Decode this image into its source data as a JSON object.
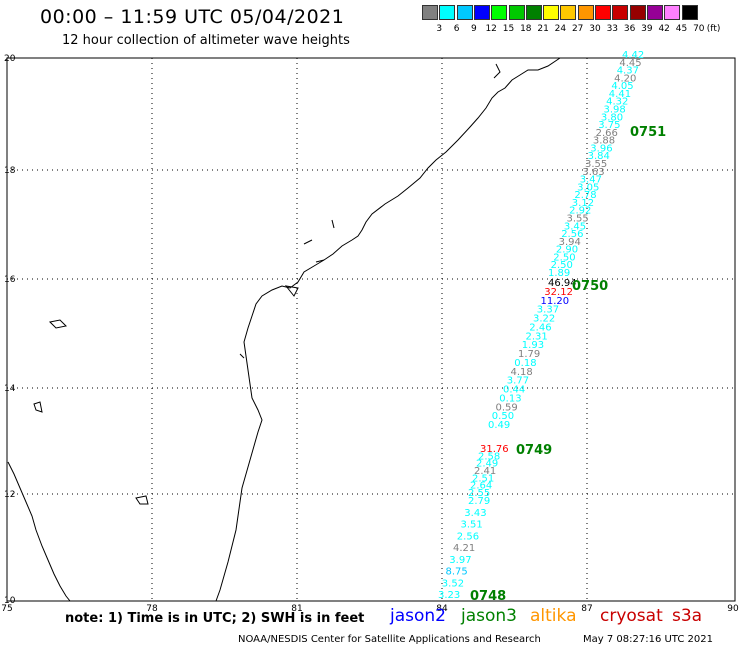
{
  "header": {
    "title": "00:00 – 11:59 UTC 05/04/2021",
    "subtitle": "12 hour collection of altimeter wave heights"
  },
  "colorbar": {
    "labels": [
      "3",
      "6",
      "9",
      "12",
      "15",
      "18",
      "21",
      "24",
      "27",
      "30",
      "33",
      "36",
      "39",
      "42",
      "45",
      "70"
    ],
    "unit": "(ft)",
    "colors": [
      "#808080",
      "#00ffff",
      "#00c8ff",
      "#0000ff",
      "#00ff00",
      "#00c800",
      "#008000",
      "#ffff00",
      "#ffc800",
      "#ff9600",
      "#ff0000",
      "#c80000",
      "#960000",
      "#960096",
      "#ff80ff",
      "#000000"
    ]
  },
  "map": {
    "lon_ticks": [
      "75",
      "78",
      "81",
      "84",
      "87",
      "90"
    ],
    "lat_ticks": [
      "20",
      "18",
      "16",
      "14",
      "12",
      "10"
    ],
    "tracks": [
      {
        "time": "0751",
        "values": [
          "4.42",
          "4.45",
          "4.37",
          "4.20",
          "4.05",
          "4.41",
          "4.32",
          "3.98",
          "3.80",
          "3.75",
          "2.66",
          "3.88",
          "3.96",
          "3.84",
          "3.55",
          "3.63",
          "3.47",
          "3.05",
          "2.78",
          "3.12",
          "2.92",
          "3.55",
          "3.45",
          "2.56",
          "3.94",
          "2.90",
          "2.50",
          "2.50",
          "1.89"
        ]
      },
      {
        "time": "0750",
        "values": [
          "46.94",
          "32.12",
          "11.20",
          "3.37",
          "3.22",
          "2.46",
          "2.31",
          "1.93",
          "1.79",
          "0.18",
          "4.18",
          "3.77",
          "0.44",
          "0.13",
          "0.59",
          "0.50",
          "0.49"
        ]
      },
      {
        "time": "0749",
        "values": [
          "31.76",
          "2.58",
          "2.49",
          "2.41",
          "2.51",
          "2.64",
          "2.55"
        ]
      },
      {
        "time": "0748",
        "values": [
          "2.79",
          "3.43",
          "3.51",
          "2.56",
          "4.21",
          "3.97",
          "8.75",
          "3.52",
          "3.23"
        ]
      }
    ]
  },
  "notes": "note: 1) Time is in UTC; 2) SWH is in feet",
  "legend": [
    {
      "name": "jason2",
      "color": "#0000ff"
    },
    {
      "name": "jason3",
      "color": "#008000"
    },
    {
      "name": "altika",
      "color": "#ff9600"
    },
    {
      "name": "cryosat",
      "color": "#c80000"
    },
    {
      "name": "s3a",
      "color": "#c80000"
    }
  ],
  "footer": {
    "credit": "NOAA/NESDIS Center for Satellite Applications and Research",
    "timestamp": "May  7 08:27:16 UTC 2021"
  }
}
